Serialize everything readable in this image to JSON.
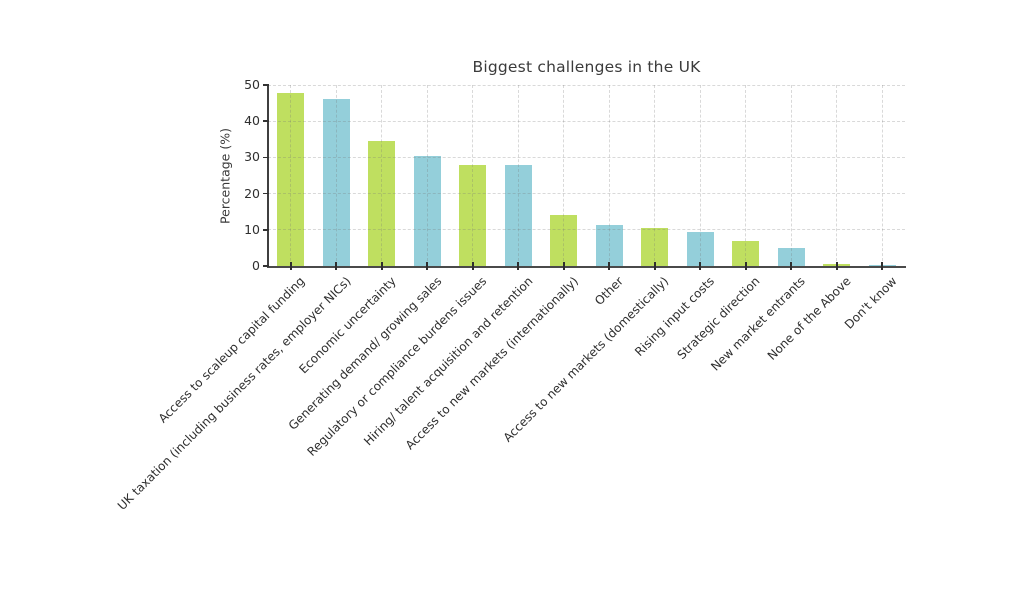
{
  "chart_data": {
    "type": "bar",
    "title": "Biggest challenges in the UK",
    "ylabel": "Percentage (%)",
    "xlabel": "",
    "ylim": [
      0,
      50
    ],
    "yticks": [
      0,
      10,
      20,
      30,
      40,
      50
    ],
    "grid": "dashed, horizontal and vertical",
    "legend_position": "none",
    "bar_color_odd": "#bfdf60",
    "bar_color_even": "#94cfda",
    "categories": [
      "Access to scaleup capital funding",
      "UK taxation (including business rates, employer NICs)",
      "Economic uncertainty",
      "Generating demand/ growing sales",
      "Regulatory or compliance burdens issues",
      "Hiring/ talent acquisition and retention",
      "Access to new markets (internationally)",
      "Other",
      "Access to new markets (domestically)",
      "Rising input costs",
      "Strategic direction",
      "New market entrants",
      "None of the Above",
      "Don't know"
    ],
    "values": [
      47.8,
      46.1,
      34.4,
      30.3,
      28.0,
      27.8,
      14.1,
      11.2,
      10.4,
      9.3,
      6.9,
      5.0,
      0.6,
      0.3
    ]
  }
}
